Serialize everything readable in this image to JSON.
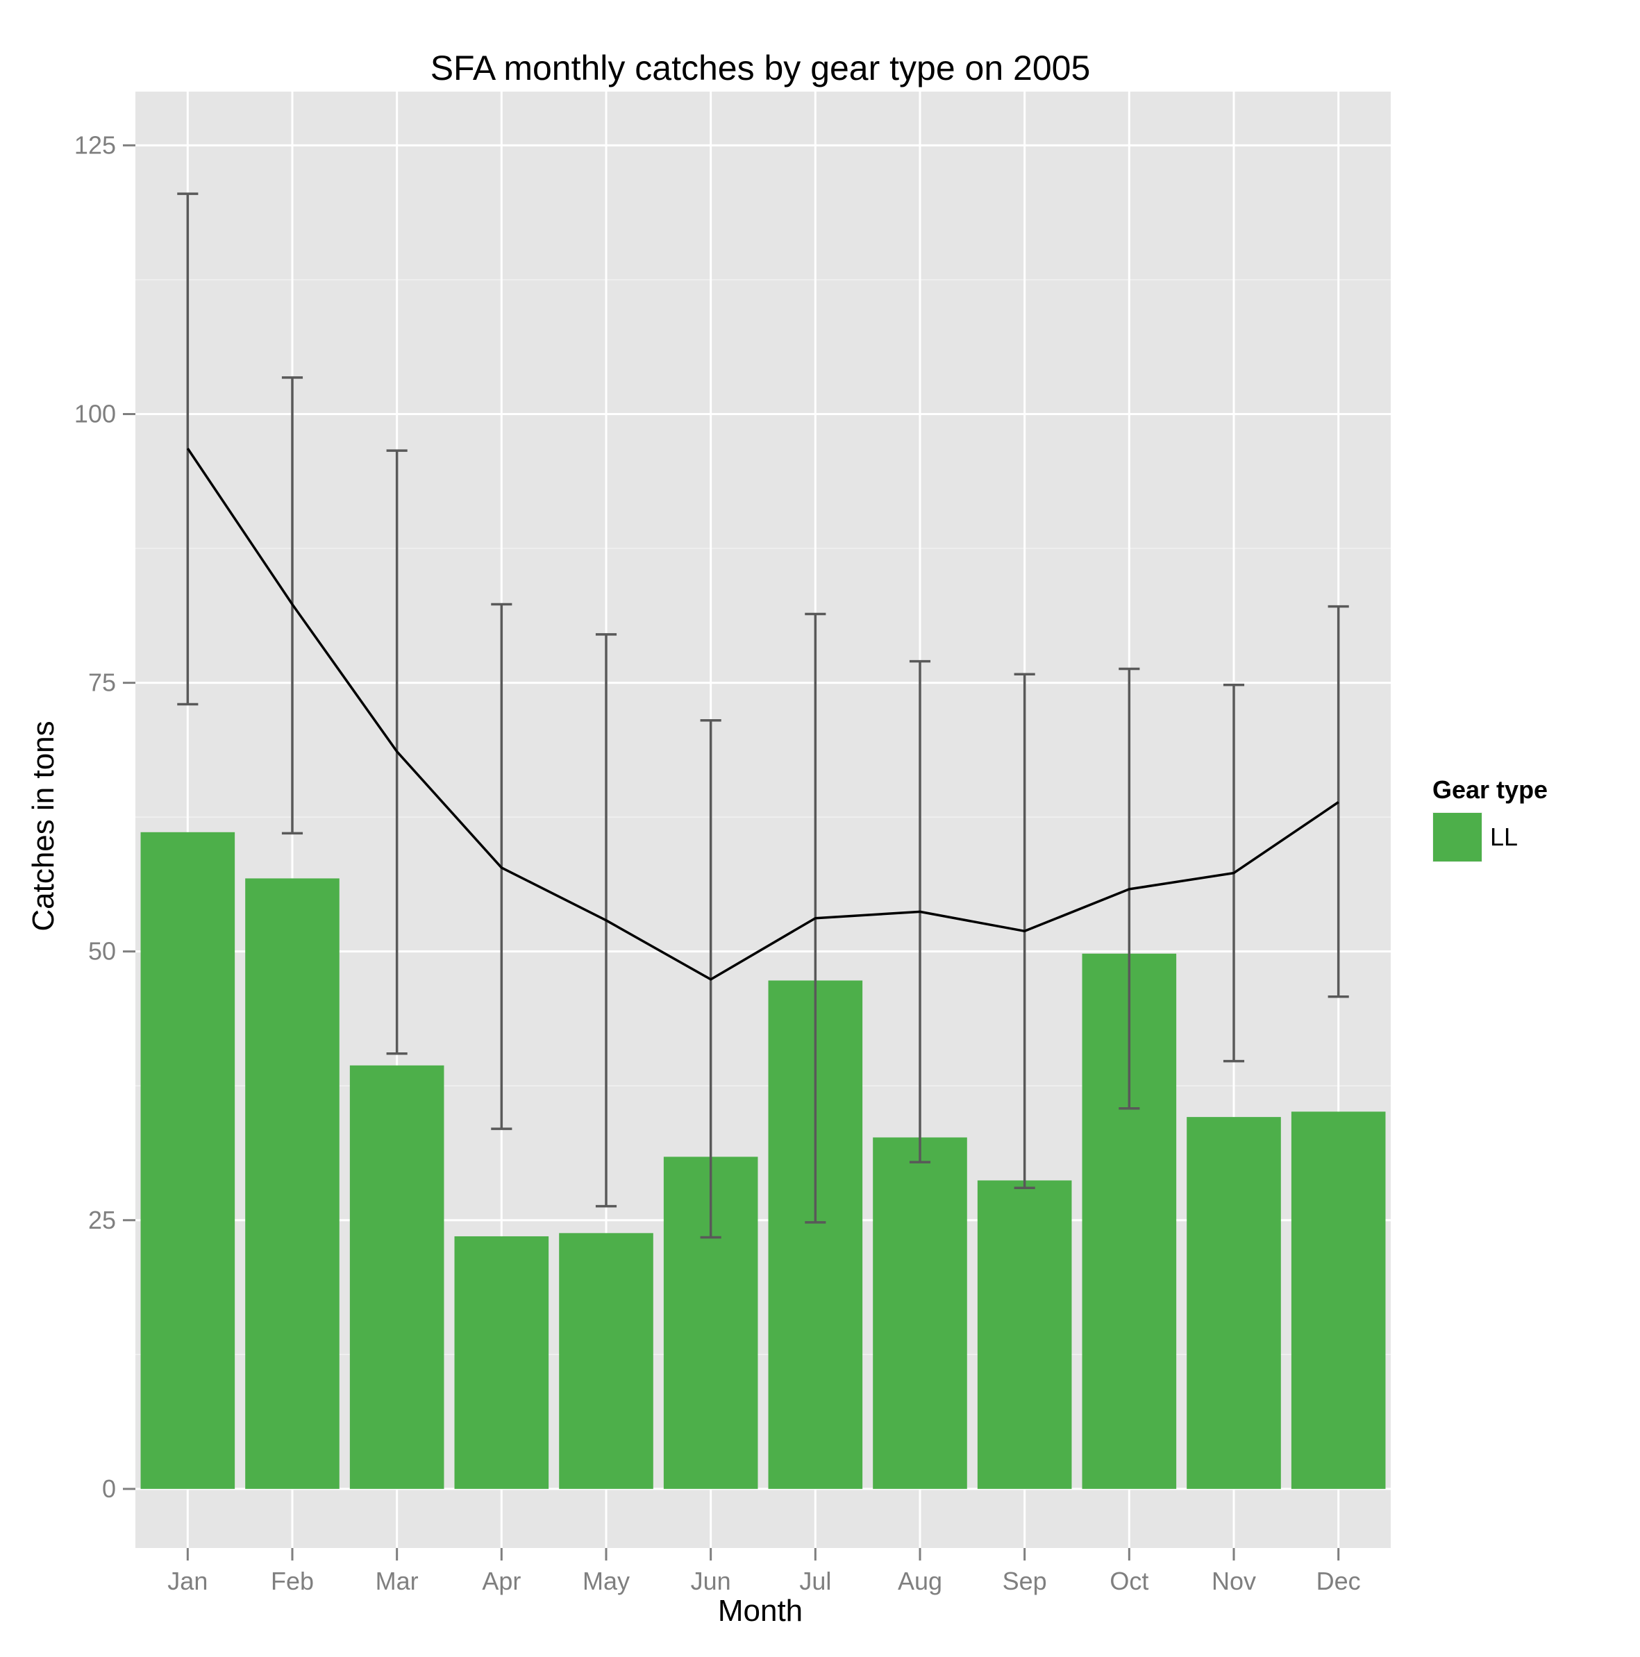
{
  "chart_data": {
    "type": "bar",
    "title": "SFA monthly catches by gear type on 2005",
    "xlabel": "Month",
    "ylabel": "Catches in tons",
    "categories": [
      "Jan",
      "Feb",
      "Mar",
      "Apr",
      "May",
      "Jun",
      "Jul",
      "Aug",
      "Sep",
      "Oct",
      "Nov",
      "Dec"
    ],
    "yticks": [
      0,
      25,
      50,
      75,
      100,
      125
    ],
    "ylim": [
      -5.5,
      130
    ],
    "grid": true,
    "legend": {
      "title": "Gear type",
      "position": "right",
      "items": [
        {
          "label": "LL",
          "color": "#4daf4a"
        }
      ]
    },
    "series": [
      {
        "name": "LL",
        "kind": "bar",
        "color": "#4daf4a",
        "values": [
          61.1,
          56.8,
          39.4,
          23.5,
          23.8,
          30.9,
          47.3,
          32.7,
          28.7,
          49.8,
          34.6,
          35.1
        ]
      }
    ],
    "line": {
      "color": "#000000",
      "values": [
        96.8,
        82.3,
        68.6,
        57.8,
        52.9,
        47.4,
        53.1,
        53.7,
        51.9,
        55.8,
        57.3,
        63.9
      ]
    },
    "errorbars": {
      "color": "#595959",
      "lower": [
        73.0,
        61.0,
        40.5,
        33.5,
        26.3,
        23.4,
        24.8,
        30.4,
        28.0,
        35.4,
        39.8,
        45.8
      ],
      "upper": [
        120.5,
        103.4,
        96.6,
        82.3,
        79.5,
        71.5,
        81.4,
        77.0,
        75.8,
        76.3,
        74.8,
        82.1
      ]
    },
    "colors": {
      "panel": "#e5e5e5",
      "grid_major": "#ffffff",
      "grid_minor": "#f2f2f2",
      "tick": "#7f7f7f"
    }
  }
}
